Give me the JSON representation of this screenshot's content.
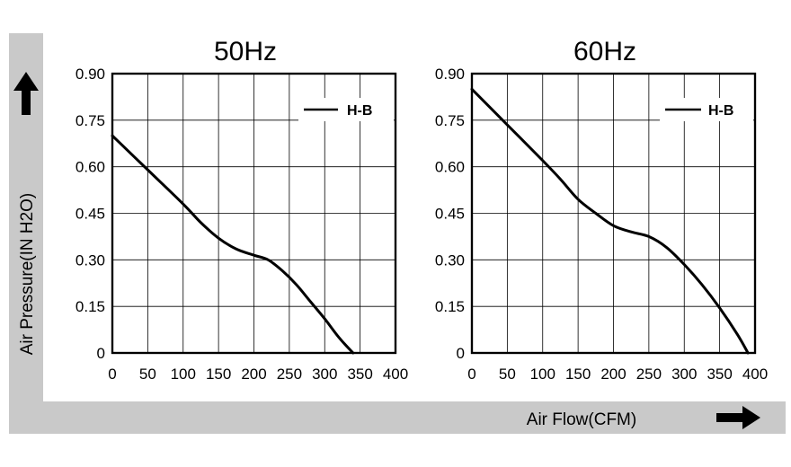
{
  "chart_data": [
    {
      "type": "line",
      "title": "50Hz",
      "xlabel": "Air Flow(CFM)",
      "ylabel": "Air Pressure(IN H2O)",
      "xlim": [
        0,
        400
      ],
      "ylim": [
        0,
        0.9
      ],
      "x_ticks": [
        "0",
        "50",
        "100",
        "150",
        "200",
        "250",
        "300",
        "350",
        "400"
      ],
      "y_ticks": [
        "0",
        "0.15",
        "0.30",
        "0.45",
        "0.60",
        "0.75",
        "0.90"
      ],
      "grid": true,
      "legend_position": "top-right",
      "series": [
        {
          "name": "H-B",
          "x": [
            0,
            50,
            100,
            125,
            150,
            175,
            200,
            220,
            240,
            260,
            280,
            300,
            320,
            340
          ],
          "y": [
            0.7,
            0.59,
            0.48,
            0.42,
            0.37,
            0.335,
            0.315,
            0.3,
            0.265,
            0.22,
            0.165,
            0.11,
            0.05,
            0.0
          ]
        }
      ]
    },
    {
      "type": "line",
      "title": "60Hz",
      "xlabel": "Air Flow(CFM)",
      "ylabel": "Air Pressure(IN H2O)",
      "xlim": [
        0,
        400
      ],
      "ylim": [
        0,
        0.9
      ],
      "x_ticks": [
        "0",
        "50",
        "100",
        "150",
        "200",
        "250",
        "300",
        "350",
        "400"
      ],
      "y_ticks": [
        "0",
        "0.15",
        "0.30",
        "0.45",
        "0.60",
        "0.75",
        "0.90"
      ],
      "grid": true,
      "legend_position": "top-right",
      "series": [
        {
          "name": "H-B",
          "x": [
            0,
            50,
            100,
            125,
            150,
            175,
            200,
            225,
            250,
            275,
            300,
            325,
            350,
            375,
            390
          ],
          "y": [
            0.85,
            0.735,
            0.62,
            0.56,
            0.495,
            0.45,
            0.41,
            0.39,
            0.375,
            0.34,
            0.285,
            0.22,
            0.145,
            0.06,
            0.0
          ]
        }
      ]
    }
  ],
  "icons": {
    "up_arrow": "arrow-up-icon",
    "right_arrow": "arrow-right-icon"
  },
  "colors": {
    "band": "#c9c9c9",
    "line": "#000000"
  }
}
